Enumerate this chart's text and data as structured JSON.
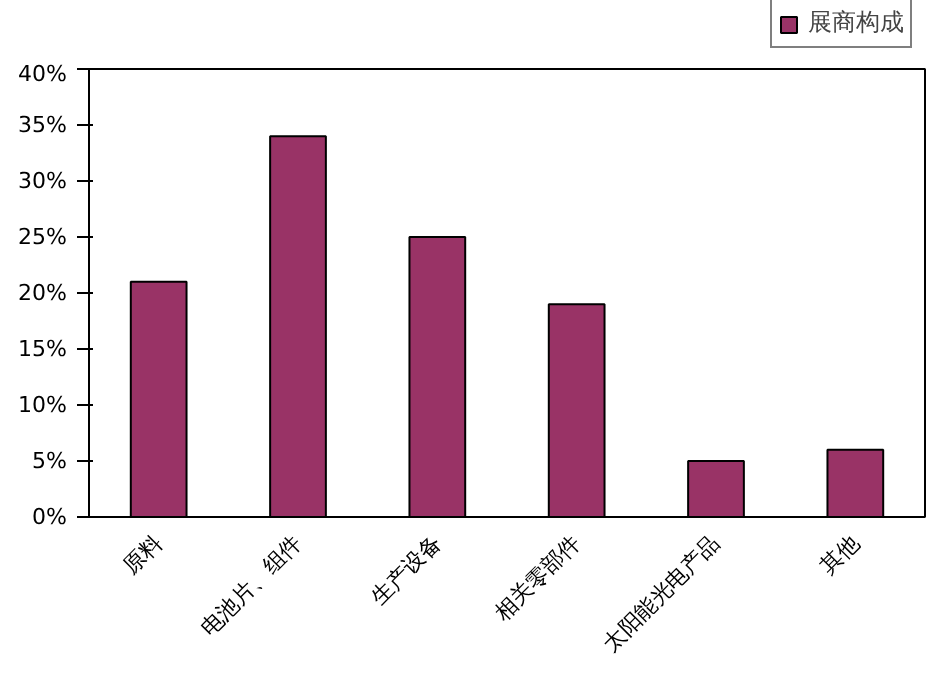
{
  "chart_data": {
    "type": "bar",
    "categories": [
      "原料",
      "电池片、组件",
      "生产设备",
      "相关零部件",
      "太阳能光电产品",
      "其他"
    ],
    "series": [
      {
        "name": "展商构成",
        "color": "#993366",
        "values": [
          21,
          34,
          25,
          19,
          5,
          6
        ]
      }
    ],
    "ylim": [
      0,
      40
    ],
    "yticks": [
      {
        "value": 0,
        "label": "0%"
      },
      {
        "value": 5,
        "label": "5%"
      },
      {
        "value": 10,
        "label": "10%"
      },
      {
        "value": 15,
        "label": "15%"
      },
      {
        "value": 20,
        "label": "20%"
      },
      {
        "value": 25,
        "label": "25%"
      },
      {
        "value": 30,
        "label": "30%"
      },
      {
        "value": 35,
        "label": "35%"
      },
      {
        "value": 40,
        "label": "40%"
      }
    ],
    "grid": false,
    "legend": "top right"
  }
}
